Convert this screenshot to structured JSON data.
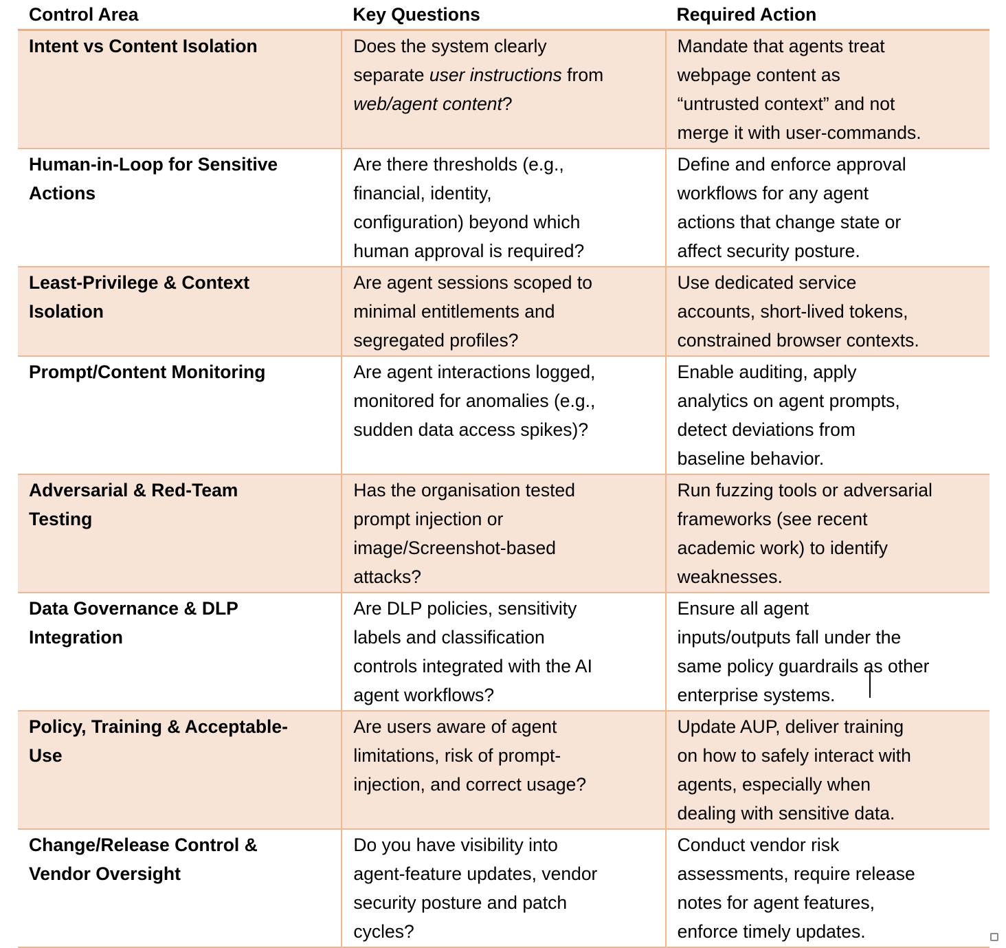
{
  "table": {
    "headers": [
      "Control Area",
      "Key Questions",
      "Required Action"
    ],
    "rows": [
      {
        "area": [
          "Intent vs Content Isolation"
        ],
        "questions": [
          [
            {
              "t": "Does the system clearly"
            }
          ],
          [
            {
              "t": "separate "
            },
            {
              "t": "user instructions",
              "i": true
            },
            {
              "t": " from"
            }
          ],
          [
            {
              "t": "web/agent content",
              "i": true
            },
            {
              "t": "?"
            }
          ]
        ],
        "action": [
          "Mandate that agents treat",
          "webpage content as",
          "“untrusted context” and not",
          "merge it with user-commands."
        ]
      },
      {
        "area": [
          "Human-in-Loop for Sensitive",
          "Actions"
        ],
        "questions": [
          "Are there thresholds (e.g.,",
          "financial, identity,",
          "configuration) beyond which",
          "human approval is required?"
        ],
        "action": [
          "Define and enforce approval",
          "workflows for any agent",
          "actions that change state or",
          "affect security posture."
        ]
      },
      {
        "area": [
          "Least-Privilege & Context",
          "Isolation"
        ],
        "questions": [
          "Are agent sessions scoped to",
          "minimal entitlements and",
          "segregated profiles?"
        ],
        "action": [
          "Use dedicated service",
          "accounts, short-lived tokens,",
          "constrained browser contexts."
        ]
      },
      {
        "area": [
          "Prompt/Content Monitoring"
        ],
        "questions": [
          "Are agent interactions logged,",
          "monitored for anomalies (e.g.,",
          "sudden data access spikes)?"
        ],
        "action": [
          "Enable auditing, apply",
          "analytics on agent prompts,",
          "detect deviations from",
          "baseline behavior."
        ]
      },
      {
        "area": [
          "Adversarial & Red-Team",
          "Testing"
        ],
        "questions": [
          "Has the organisation tested",
          "prompt injection or",
          "image/Screenshot-based",
          "attacks?"
        ],
        "action": [
          "Run fuzzing tools or adversarial",
          "frameworks (see recent",
          "academic work) to identify",
          "weaknesses."
        ]
      },
      {
        "area": [
          "Data Governance & DLP",
          "Integration"
        ],
        "questions": [
          "Are DLP policies, sensitivity",
          "labels and classification",
          "controls integrated with the AI",
          "agent workflows?"
        ],
        "action": [
          "Ensure all agent",
          "inputs/outputs fall under the",
          "same policy guardrails as other",
          "enterprise systems."
        ]
      },
      {
        "area": [
          "Policy, Training & Acceptable-",
          "Use"
        ],
        "questions": [
          "Are users aware of agent",
          "limitations, risk of prompt-",
          "injection, and correct usage?"
        ],
        "action": [
          "Update AUP, deliver training",
          "on how to safely interact with",
          "agents, especially when",
          "dealing with sensitive data."
        ]
      },
      {
        "area": [
          "Change/Release Control &",
          "Vendor Oversight"
        ],
        "questions": [
          "Do you have visibility into",
          "agent-feature updates, vendor",
          "security posture and patch",
          "cycles?"
        ],
        "action": [
          "Conduct vendor risk",
          "assessments, require release",
          "notes for agent features,",
          "enforce timely updates."
        ]
      }
    ]
  },
  "colors": {
    "row_fill": "#F7E4D7",
    "border": "#EDB995"
  }
}
